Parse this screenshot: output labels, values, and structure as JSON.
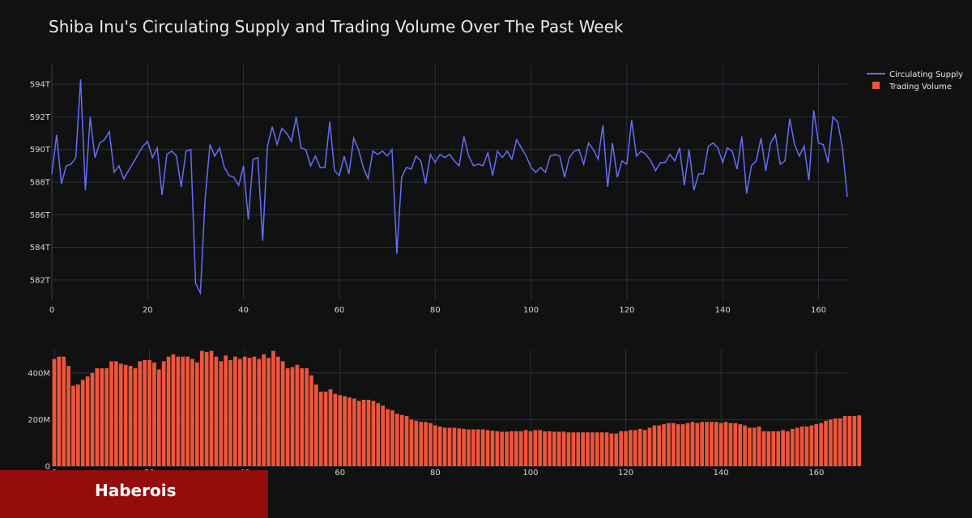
{
  "chart_data": {
    "title": "Shiba Inu's Circulating Supply and Trading Volume Over The Past Week",
    "legend": {
      "placement": "top-right",
      "entries": [
        "Circulating Supply",
        "Trading Volume"
      ]
    },
    "colors": {
      "supply_line": "#636efa",
      "volume_bars": "#ef553b",
      "background": "#111111",
      "grid": "#2a3040"
    },
    "supply": {
      "type": "line",
      "name": "Circulating Supply",
      "unit_suffix": "T",
      "xlim": [
        0,
        166
      ],
      "ylim": [
        580.8,
        595.2
      ],
      "x_ticks": [
        0,
        20,
        40,
        60,
        80,
        100,
        120,
        140,
        160
      ],
      "x_tick_labels": [
        "0",
        "20",
        "40",
        "60",
        "80",
        "100",
        "120",
        "140",
        "160"
      ],
      "y_ticks": [
        582,
        584,
        586,
        588,
        590,
        592,
        594
      ],
      "y_tick_labels": [
        "582T",
        "584T",
        "586T",
        "588T",
        "590T",
        "592T",
        "594T"
      ],
      "values": [
        588.5,
        590.9,
        587.9,
        589.0,
        589.1,
        589.5,
        594.3,
        587.5,
        592.0,
        589.5,
        590.4,
        590.6,
        591.1,
        588.6,
        589.0,
        588.2,
        588.7,
        589.2,
        589.7,
        590.2,
        590.5,
        589.5,
        590.1,
        587.2,
        589.7,
        589.9,
        589.6,
        587.7,
        589.9,
        590.0,
        581.8,
        581.2,
        587.0,
        590.3,
        589.6,
        590.1,
        588.9,
        588.4,
        588.3,
        587.8,
        589.0,
        585.7,
        589.4,
        589.5,
        584.4,
        590.2,
        591.4,
        590.3,
        591.3,
        591.0,
        590.5,
        592.0,
        590.1,
        590.0,
        589.0,
        589.6,
        588.9,
        588.9,
        591.7,
        588.7,
        588.4,
        589.6,
        588.5,
        590.7,
        590.0,
        588.9,
        588.2,
        589.9,
        589.7,
        589.9,
        589.6,
        590.0,
        583.6,
        588.3,
        588.9,
        588.8,
        589.6,
        589.3,
        587.9,
        589.7,
        589.2,
        589.7,
        589.5,
        589.7,
        589.3,
        589.0,
        590.8,
        589.6,
        589.0,
        589.1,
        589.0,
        589.8,
        588.4,
        589.9,
        589.5,
        589.9,
        589.4,
        590.6,
        590.1,
        589.6,
        588.9,
        588.6,
        588.9,
        588.6,
        589.6,
        589.7,
        589.6,
        588.3,
        589.5,
        589.9,
        590.0,
        589.1,
        590.4,
        590.0,
        589.4,
        591.5,
        587.7,
        590.4,
        588.3,
        589.3,
        589.1,
        591.8,
        589.6,
        589.9,
        589.7,
        589.3,
        588.7,
        589.2,
        589.2,
        589.7,
        589.3,
        590.1,
        587.8,
        590.0,
        587.5,
        588.5,
        588.5,
        590.2,
        590.4,
        590.1,
        589.2,
        590.1,
        589.9,
        588.8,
        590.8,
        587.3,
        589.0,
        589.3,
        590.7,
        588.7,
        590.4,
        590.9,
        589.1,
        589.3,
        591.9,
        590.3,
        589.6,
        590.2,
        588.1,
        592.4,
        590.4,
        590.3,
        589.2,
        592.0,
        591.7,
        590.1,
        587.1
      ]
    },
    "volume": {
      "type": "bar",
      "name": "Trading Volume",
      "unit_suffix": "M",
      "xlim": [
        -0.5,
        166.5
      ],
      "ylim": [
        0,
        500
      ],
      "x_ticks": [
        0,
        20,
        40,
        60,
        80,
        100,
        120,
        140,
        160
      ],
      "x_tick_labels": [
        "0",
        "20",
        "40",
        "60",
        "80",
        "100",
        "120",
        "140",
        "160"
      ],
      "y_ticks": [
        0,
        200,
        400
      ],
      "y_tick_labels": [
        "0",
        "200M",
        "400M"
      ],
      "values": [
        460,
        470,
        470,
        430,
        345,
        350,
        370,
        385,
        400,
        420,
        420,
        420,
        450,
        450,
        440,
        435,
        430,
        420,
        450,
        455,
        455,
        445,
        415,
        450,
        470,
        480,
        470,
        470,
        470,
        460,
        445,
        495,
        490,
        495,
        470,
        450,
        475,
        455,
        470,
        460,
        470,
        465,
        470,
        460,
        480,
        465,
        495,
        470,
        450,
        420,
        425,
        435,
        420,
        420,
        390,
        350,
        320,
        320,
        330,
        310,
        305,
        300,
        295,
        290,
        280,
        285,
        285,
        280,
        270,
        260,
        245,
        240,
        225,
        220,
        215,
        200,
        195,
        190,
        190,
        185,
        175,
        170,
        165,
        165,
        165,
        162,
        160,
        158,
        158,
        158,
        158,
        155,
        152,
        150,
        148,
        148,
        150,
        150,
        150,
        155,
        150,
        155,
        155,
        150,
        150,
        148,
        148,
        148,
        145,
        145,
        145,
        145,
        145,
        145,
        145,
        145,
        145,
        140,
        140,
        150,
        150,
        155,
        155,
        160,
        155,
        165,
        175,
        175,
        180,
        185,
        185,
        180,
        180,
        185,
        190,
        185,
        190,
        190,
        190,
        190,
        185,
        190,
        185,
        185,
        180,
        175,
        165,
        165,
        170,
        150,
        150,
        150,
        150,
        155,
        150,
        160,
        165,
        170,
        170,
        175,
        180,
        185,
        195,
        200,
        205,
        205,
        215,
        215,
        215,
        218
      ]
    }
  },
  "watermark": {
    "text": "Haberois"
  }
}
